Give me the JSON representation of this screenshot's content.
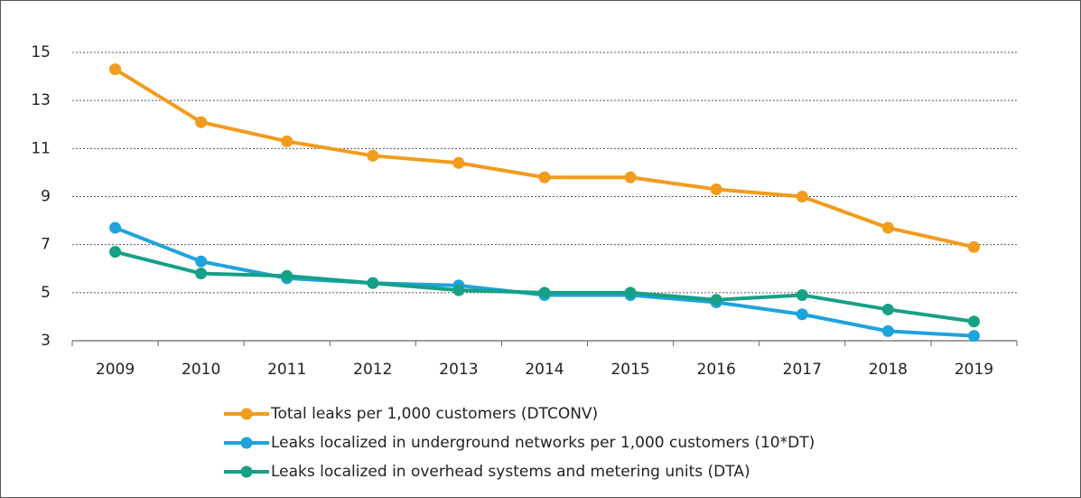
{
  "chart_data": {
    "type": "line",
    "categories": [
      "2009",
      "2010",
      "2011",
      "2012",
      "2013",
      "2014",
      "2015",
      "2016",
      "2017",
      "2018",
      "2019"
    ],
    "series": [
      {
        "name": "Total leaks per 1,000 customers (DTCONV)",
        "color": "#f29b1d",
        "values": [
          14.3,
          12.1,
          11.3,
          10.7,
          10.4,
          9.8,
          9.8,
          9.3,
          9.0,
          7.7,
          6.9
        ]
      },
      {
        "name": "Leaks localized in underground networks per 1,000 customers (10*DT)",
        "color": "#1fa3dd",
        "values": [
          7.7,
          6.3,
          5.6,
          5.4,
          5.3,
          4.9,
          4.9,
          4.6,
          4.1,
          3.4,
          3.2
        ]
      },
      {
        "name": "Leaks localized in overhead systems and metering units (DTA)",
        "color": "#16a086",
        "values": [
          6.7,
          5.8,
          5.7,
          5.4,
          5.1,
          5.0,
          5.0,
          4.7,
          4.9,
          4.3,
          3.8
        ]
      }
    ],
    "ylim": [
      3,
      15
    ],
    "yticks": [
      3,
      5,
      7,
      9,
      11,
      13,
      15
    ],
    "grid": true,
    "legend": "bottom"
  }
}
